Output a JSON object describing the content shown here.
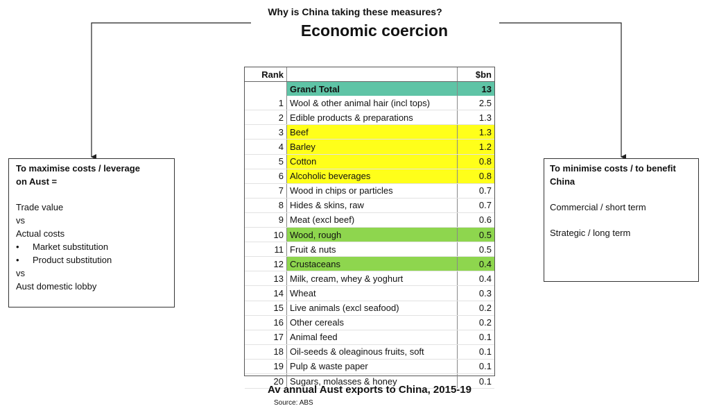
{
  "header": {
    "question": "Why is China taking these measures?",
    "title": "Economic coercion"
  },
  "left_box": {
    "heading_line1": "To maximise costs / leverage",
    "heading_line2": "on Aust =",
    "lines": [
      "Trade value",
      "vs",
      "Actual costs"
    ],
    "bullets": [
      "Market substitution",
      "Product substitution"
    ],
    "after": [
      "vs",
      "Aust domestic lobby"
    ]
  },
  "right_box": {
    "heading_line1": "To minimise costs / to benefit",
    "heading_line2": "China",
    "line1": "Commercial / short term",
    "line2": "Strategic / long term"
  },
  "table": {
    "headers": {
      "rank": "Rank",
      "item": "",
      "value": "$bn"
    },
    "total": {
      "label": "Grand Total",
      "value": "13"
    },
    "rows": [
      {
        "rank": "1",
        "item": "Wool & other animal hair (incl tops)",
        "value": "2.5",
        "highlight": ""
      },
      {
        "rank": "2",
        "item": "Edible products & preparations",
        "value": "1.3",
        "highlight": ""
      },
      {
        "rank": "3",
        "item": "Beef",
        "value": "1.3",
        "highlight": "yellow"
      },
      {
        "rank": "4",
        "item": "Barley",
        "value": "1.2",
        "highlight": "yellow"
      },
      {
        "rank": "5",
        "item": "Cotton",
        "value": "0.8",
        "highlight": "yellow"
      },
      {
        "rank": "6",
        "item": "Alcoholic beverages",
        "value": "0.8",
        "highlight": "yellow"
      },
      {
        "rank": "7",
        "item": "Wood in chips or particles",
        "value": "0.7",
        "highlight": ""
      },
      {
        "rank": "8",
        "item": "Hides & skins, raw",
        "value": "0.7",
        "highlight": ""
      },
      {
        "rank": "9",
        "item": "Meat (excl beef)",
        "value": "0.6",
        "highlight": ""
      },
      {
        "rank": "10",
        "item": "Wood, rough",
        "value": "0.5",
        "highlight": "green"
      },
      {
        "rank": "11",
        "item": "Fruit & nuts",
        "value": "0.5",
        "highlight": ""
      },
      {
        "rank": "12",
        "item": "Crustaceans",
        "value": "0.4",
        "highlight": "green"
      },
      {
        "rank": "13",
        "item": "Milk, cream, whey & yoghurt",
        "value": "0.4",
        "highlight": ""
      },
      {
        "rank": "14",
        "item": "Wheat",
        "value": "0.3",
        "highlight": ""
      },
      {
        "rank": "15",
        "item": "Live animals (excl seafood)",
        "value": "0.2",
        "highlight": ""
      },
      {
        "rank": "16",
        "item": "Other cereals",
        "value": "0.2",
        "highlight": ""
      },
      {
        "rank": "17",
        "item": "Animal feed",
        "value": "0.1",
        "highlight": ""
      },
      {
        "rank": "18",
        "item": "Oil-seeds & oleaginous fruits, soft",
        "value": "0.1",
        "highlight": ""
      },
      {
        "rank": "19",
        "item": "Pulp & waste paper",
        "value": "0.1",
        "highlight": ""
      },
      {
        "rank": "20",
        "item": "Sugars, molasses & honey",
        "value": "0.1",
        "highlight": ""
      }
    ]
  },
  "footer": {
    "caption": "Av annual Aust exports to China, 2015-19",
    "source": "Source: ABS"
  },
  "colors": {
    "total_highlight": "#5fc4a6",
    "yellow_highlight": "#ffff1a",
    "green_highlight": "#8ed64e"
  }
}
